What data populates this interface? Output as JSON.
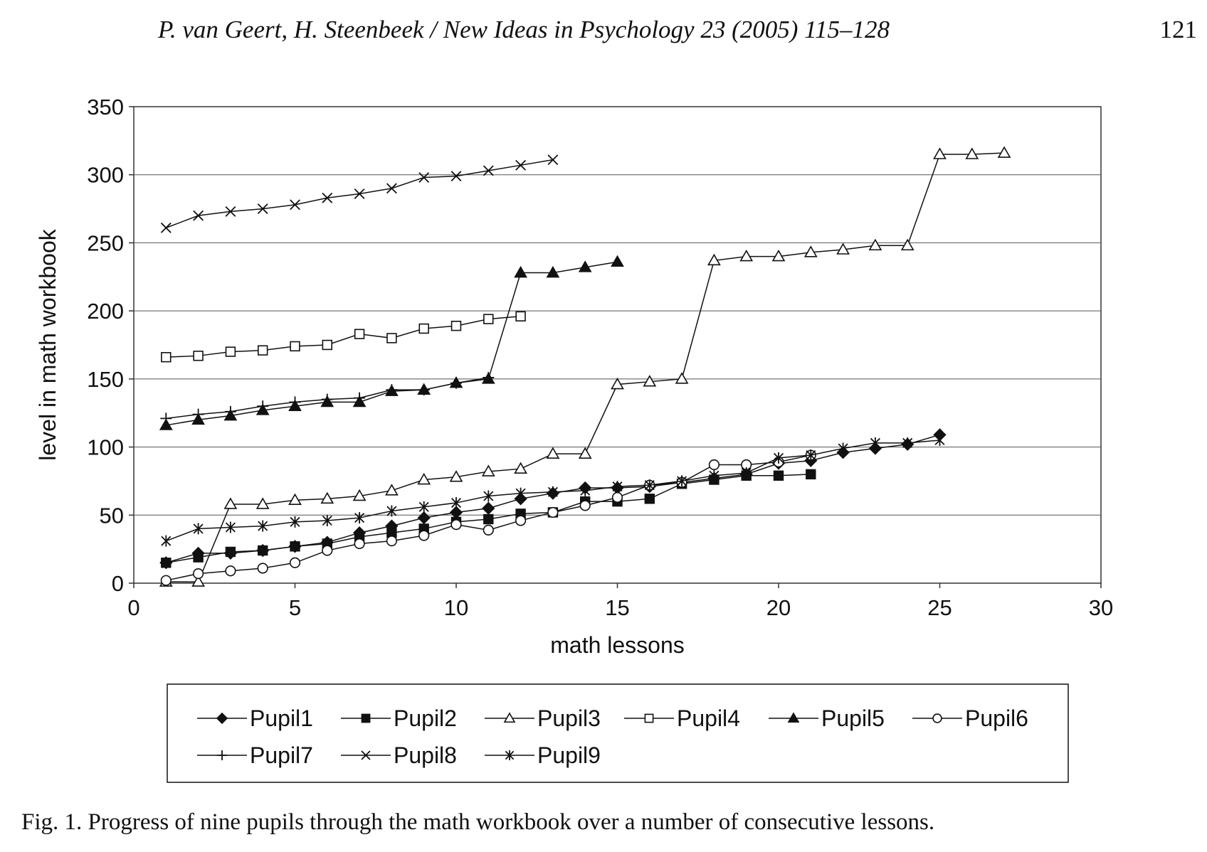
{
  "header": {
    "running_head": "P. van Geert, H. Steenbeek / New Ideas in Psychology 23 (2005) 115–128",
    "page_number": "121"
  },
  "caption": "Fig. 1. Progress of nine pupils through the math workbook over a number of consecutive lessons.",
  "chart_data": {
    "type": "line",
    "title": "",
    "xlabel": "math lessons",
    "ylabel": "level in math workbook",
    "xlim": [
      0,
      30
    ],
    "ylim": [
      0,
      350
    ],
    "xticks": [
      0,
      5,
      10,
      15,
      20,
      25,
      30
    ],
    "yticks": [
      0,
      50,
      100,
      150,
      200,
      250,
      300,
      350
    ],
    "grid": "horizontal",
    "legend_position": "bottom",
    "series": [
      {
        "name": "Pupil1",
        "marker": "diamond",
        "fill": "#111111",
        "x": [
          1,
          2,
          3,
          4,
          5,
          6,
          7,
          8,
          9,
          10,
          11,
          12,
          13,
          14,
          15,
          16,
          17,
          18,
          19,
          20,
          21,
          22,
          23,
          24,
          25
        ],
        "y": [
          15,
          22,
          22,
          24,
          27,
          30,
          37,
          42,
          48,
          52,
          55,
          62,
          66,
          70,
          70,
          71,
          74,
          77,
          80,
          88,
          90,
          96,
          99,
          102,
          109
        ]
      },
      {
        "name": "Pupil2",
        "marker": "square",
        "fill": "#111111",
        "x": [
          1,
          2,
          3,
          4,
          5,
          6,
          7,
          8,
          9,
          10,
          11,
          12,
          13,
          14,
          15,
          16,
          17,
          18,
          19,
          20,
          21
        ],
        "y": [
          15,
          19,
          23,
          24,
          27,
          29,
          34,
          37,
          40,
          45,
          47,
          51,
          52,
          60,
          60,
          62,
          73,
          76,
          79,
          79,
          80
        ]
      },
      {
        "name": "Pupil3",
        "marker": "triangle",
        "fill": "#ffffff",
        "x": [
          1,
          2,
          3,
          4,
          5,
          6,
          7,
          8,
          9,
          10,
          11,
          12,
          13,
          14,
          15,
          16,
          17,
          18,
          19,
          20,
          21,
          22,
          23,
          24,
          25,
          26,
          27
        ],
        "y": [
          1,
          1,
          58,
          58,
          61,
          62,
          64,
          68,
          76,
          78,
          82,
          84,
          95,
          95,
          146,
          148,
          150,
          237,
          240,
          240,
          243,
          245,
          248,
          248,
          315,
          315,
          316
        ]
      },
      {
        "name": "Pupil4",
        "marker": "square",
        "fill": "#ffffff",
        "x": [
          1,
          2,
          3,
          4,
          5,
          6,
          7,
          8,
          9,
          10,
          11,
          12
        ],
        "y": [
          166,
          167,
          170,
          171,
          174,
          175,
          183,
          180,
          187,
          189,
          194,
          196
        ]
      },
      {
        "name": "Pupil5",
        "marker": "triangle",
        "fill": "#111111",
        "x": [
          1,
          2,
          3,
          4,
          5,
          6,
          7,
          8,
          9,
          10,
          11,
          12,
          13,
          14,
          15
        ],
        "y": [
          116,
          120,
          123,
          127,
          130,
          133,
          133,
          141,
          142,
          147,
          150,
          228,
          228,
          232,
          236
        ]
      },
      {
        "name": "Pupil6",
        "marker": "circle",
        "fill": "#ffffff",
        "x": [
          1,
          2,
          3,
          4,
          5,
          6,
          7,
          8,
          9,
          10,
          11,
          12,
          13,
          14,
          15,
          16,
          17,
          18,
          19,
          20,
          21
        ],
        "y": [
          2,
          7,
          9,
          11,
          15,
          24,
          29,
          31,
          35,
          43,
          39,
          46,
          52,
          57,
          63,
          72,
          74,
          87,
          87,
          89,
          94
        ]
      },
      {
        "name": "Pupil7",
        "marker": "plus",
        "fill": "none",
        "x": [
          1,
          2,
          3,
          4,
          5,
          6,
          7,
          8,
          9,
          10,
          11
        ],
        "y": [
          121,
          124,
          126,
          130,
          133,
          135,
          136,
          142,
          142,
          147,
          151
        ]
      },
      {
        "name": "Pupil8",
        "marker": "x",
        "fill": "none",
        "x": [
          1,
          2,
          3,
          4,
          5,
          6,
          7,
          8,
          9,
          10,
          11,
          12,
          13
        ],
        "y": [
          261,
          270,
          273,
          275,
          278,
          283,
          286,
          290,
          298,
          299,
          303,
          307,
          311
        ]
      },
      {
        "name": "Pupil9",
        "marker": "star",
        "fill": "none",
        "x": [
          1,
          2,
          3,
          4,
          5,
          6,
          7,
          8,
          9,
          10,
          11,
          12,
          13,
          14,
          15,
          16,
          17,
          18,
          19,
          20,
          21,
          22,
          23,
          24,
          25
        ],
        "y": [
          31,
          40,
          41,
          42,
          45,
          46,
          48,
          53,
          56,
          59,
          64,
          66,
          67,
          68,
          71,
          72,
          75,
          79,
          81,
          92,
          94,
          99,
          103,
          103,
          105
        ]
      }
    ]
  }
}
